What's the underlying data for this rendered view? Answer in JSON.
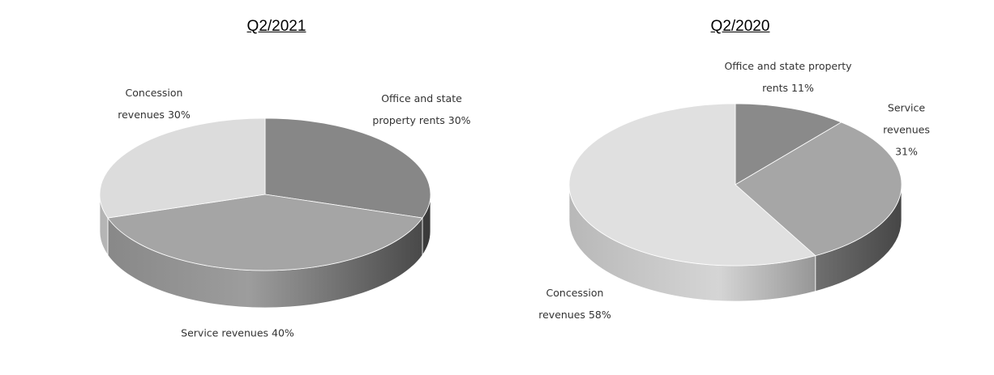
{
  "chart_data": [
    {
      "type": "pie3d",
      "title": "Q2/2021",
      "categories": [
        "Office and state property rents",
        "Service revenues",
        "Concession revenues"
      ],
      "values": [
        30,
        40,
        30
      ],
      "value_labels": [
        "30%",
        "40%",
        "30%"
      ],
      "colors": [
        "#878787",
        "#a5a5a5",
        "#dcdcdc"
      ]
    },
    {
      "type": "pie3d",
      "title": "Q2/2020",
      "categories": [
        "Office and state property rents",
        "Service revenues",
        "Concession revenues"
      ],
      "values": [
        11,
        31,
        58
      ],
      "value_labels": [
        "11%",
        "31%",
        "58%"
      ],
      "colors": [
        "#8a8a8a",
        "#a6a6a6",
        "#e0e0e0"
      ]
    }
  ]
}
